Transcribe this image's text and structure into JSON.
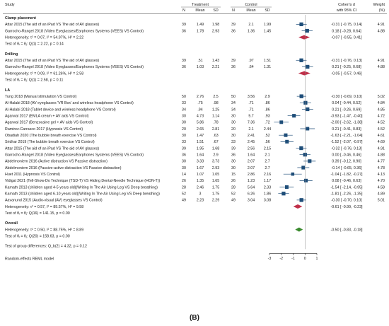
{
  "header": {
    "study": "Study",
    "treatment": "Treatment",
    "control": "Control",
    "n": "N",
    "mean": "Mean",
    "sd": "SD",
    "effect_line1": "Cohen's d",
    "effect_line2": "with 95% CI",
    "weight_line1": "Weight",
    "weight_line2": "(%)"
  },
  "groups": [
    {
      "title": "Clamp placement",
      "studies": [
        {
          "label": "Attar 2015 (The aid of an iPad VS The aid of AV glasses)",
          "tn": "39",
          "tmean": "1.49",
          "tsd": "1.98",
          "cn": "39",
          "cmean": "2.1",
          "csd": "1.99",
          "ci_text": "-0.31 [ -0.75,  0.14]",
          "weight": "4.91",
          "d": -0.31,
          "lo": -0.75,
          "hi": 0.14,
          "w": 4.91
        },
        {
          "label": "Garrocho-Rangel 2018 (Video Eyeglasses/Earphones Systems (VEES) VS Control)",
          "tn": "36",
          "tmean": "1.78",
          "tsd": "2.93",
          "cn": "36",
          "cmean": "1.36",
          "csd": "1.45",
          "ci_text": "0.18 [ -0.28,  0.64]",
          "weight": "4.88",
          "d": 0.18,
          "lo": -0.28,
          "hi": 0.64,
          "w": 4.88
        }
      ],
      "summary": {
        "label": "Heterogeneity: τ² = 0.07, I² = 54.97%, H² = 2.22",
        "ci_text": "-0.07 [ -0.55,  0.41]",
        "d": -0.07,
        "lo": -0.55,
        "hi": 0.41
      },
      "test": "Test of θᵢ = θⱼ: Q(1) = 2.22, p = 0.14"
    },
    {
      "title": "Drilling",
      "studies": [
        {
          "label": "Attar 2015 (The aid of an iPad VS The aid of AV glasses)",
          "tn": "39",
          "tmean": ".51",
          "tsd": "1.43",
          "cn": "39",
          "cmean": ".97",
          "csd": "1.51",
          "ci_text": "-0.31 [ -0.76,  0.13]",
          "weight": "4.91",
          "d": -0.31,
          "lo": -0.76,
          "hi": 0.13,
          "w": 4.91
        },
        {
          "label": "Garrocho-Rangel 2018 (Video Eyeglasses/Earphones Systems (VEES) VS Control)",
          "tn": "36",
          "tmean": "1.03",
          "tsd": "2.21",
          "cn": "36",
          "cmean": ".64",
          "csd": "1.31",
          "ci_text": "0.21 [ -0.25,  0.68]",
          "weight": "4.88",
          "d": 0.21,
          "lo": -0.25,
          "hi": 0.68,
          "w": 4.88
        }
      ],
      "summary": {
        "label": "Heterogeneity: τ² = 0.09, I² = 61.26%, H² = 2.58",
        "ci_text": "-0.05 [ -0.57,  0.46]",
        "d": -0.05,
        "lo": -0.57,
        "hi": 0.46
      },
      "test": "Test of θᵢ = θⱼ: Q(1) = 2.58, p = 0.11"
    },
    {
      "title": "LA",
      "studies": [
        {
          "label": "Tung 2018 (Manual stimulation VS Control)",
          "tn": "50",
          "tmean": "2.76",
          "tsd": "2.5",
          "cn": "50",
          "cmean": "3.56",
          "csd": "2.9",
          "ci_text": "-0.30 [ -0.69,  0.10]",
          "weight": "5.02",
          "d": -0.3,
          "lo": -0.69,
          "hi": 0.1,
          "w": 5.02
        },
        {
          "label": "Al-Halabi 2018 (AV eyeglasses 'VR Box' and wireless headphone VS Control)",
          "tn": "33",
          "tmean": ".75",
          "tsd": ".98",
          "cn": "34",
          "cmean": ".71",
          "csd": ".86",
          "ci_text": "0.04 [ -0.44,  0.52]",
          "weight": "4.84",
          "d": 0.04,
          "lo": -0.44,
          "hi": 0.52,
          "w": 4.84
        },
        {
          "label": "Al-Halabi 2018 (Tablet device and wireless headphone VS Control)",
          "tn": "34",
          "tmean": ".94",
          "tsd": "1.25",
          "cn": "34",
          "cmean": ".71",
          "csd": ".86",
          "ci_text": "0.21 [ -0.26,  0.69]",
          "weight": "4.85",
          "d": 0.21,
          "lo": -0.26,
          "hi": 0.69,
          "w": 4.85
        },
        {
          "label": "Agarwal 2017 (EMLA cream + AV aids VS Control)",
          "tn": "30",
          "tmean": "4.73",
          "tsd": "1.14",
          "cn": "30",
          "cmean": "5.7",
          "csd": ".93",
          "ci_text": "-0.93 [ -1.47, -0.40]",
          "weight": "4.72",
          "d": -0.93,
          "lo": -1.47,
          "hi": -0.4,
          "w": 4.72
        },
        {
          "label": "Agarwal 2017 (Benzocaine gel + AV aids VS Control)",
          "tn": "30",
          "tmean": "5.86",
          "tsd": ".78",
          "cn": "30",
          "cmean": "7.36",
          "csd": ".72",
          "ci_text": "-2.00 [ -2.62, -1.38]",
          "weight": "4.52",
          "d": -2.0,
          "lo": -2.62,
          "hi": -1.38,
          "w": 4.52
        },
        {
          "label": "Ramirez-Carrasco 2017 (Hypnosis VS Control)",
          "tn": "20",
          "tmean": "2.65",
          "tsd": "2.81",
          "cn": "20",
          "cmean": "2.1",
          "csd": "2.44",
          "ci_text": "0.21 [ -0.41,  0.83]",
          "weight": "4.52",
          "d": 0.21,
          "lo": -0.41,
          "hi": 0.83,
          "w": 4.52
        },
        {
          "label": "Obadiah 2020 (The bubble breath exercise VS Control)",
          "tn": "30",
          "tmean": "1.47",
          "tsd": ".63",
          "cn": "30",
          "cmean": "2.41",
          "csd": ".52",
          "ci_text": "-1.63 [ -2.21, -1.04]",
          "weight": "4.61",
          "d": -1.63,
          "lo": -2.21,
          "hi": -1.04,
          "w": 4.61
        },
        {
          "label": "Sridhar 2019 (The bubble breath exercise VS Control)",
          "tn": "33",
          "tmean": "1.51",
          "tsd": ".67",
          "cn": "33",
          "cmean": "2.45",
          "csd": ".56",
          "ci_text": "-1.52 [ -2.07, -0.97]",
          "weight": "4.69",
          "d": -1.52,
          "lo": -2.07,
          "hi": -0.97,
          "w": 4.69
        },
        {
          "label": "Attar 2015 (The aid of an iPad VS The aid of AV glasses)",
          "tn": "39",
          "tmean": "1.95",
          "tsd": "1.68",
          "cn": "39",
          "cmean": "2.56",
          "csd": "2.15",
          "ci_text": "-0.32 [ -0.76,  0.13]",
          "weight": "4.91",
          "d": -0.32,
          "lo": -0.76,
          "hi": 0.13,
          "w": 4.91
        },
        {
          "label": "Garrocho-Rangel 2018 (Video Eyeglasses/Earphones Systems (VEES) VS Control)",
          "tn": "36",
          "tmean": "1.64",
          "tsd": "2.9",
          "cn": "36",
          "cmean": "1.64",
          "csd": "2.1",
          "ci_text": "0.00 [ -0.46,  0.46]",
          "weight": "4.88",
          "d": 0.0,
          "lo": -0.46,
          "hi": 0.46,
          "w": 4.88
        },
        {
          "label": "Abdelmoniem 2016 (Active distraction VS Passive distraction)",
          "tn": "30",
          "tmean": "3.33",
          "tsd": "3.73",
          "cn": "30",
          "cmean": "2.07",
          "csd": "2.7",
          "ci_text": "0.39 [ -0.12,  0.90]",
          "weight": "4.77",
          "d": 0.39,
          "lo": -0.12,
          "hi": 0.9,
          "w": 4.77
        },
        {
          "label": "Abdelmoniem 2016 (Passive-active distraction VS Passive distraction)",
          "tn": "30",
          "tmean": "1.67",
          "tsd": "2.93",
          "cn": "30",
          "cmean": "2.07",
          "csd": "2.7",
          "ci_text": "-0.14 [ -0.65,  0.36]",
          "weight": "4.78",
          "d": -0.14,
          "lo": -0.65,
          "hi": 0.36,
          "w": 4.78
        },
        {
          "label": "Huet 2011 (Hypnosis VS Control)",
          "tn": "14",
          "tmean": "1.07",
          "tsd": "1.05",
          "cn": "15",
          "cmean": "2.86",
          "csd": "2.16",
          "ci_text": "-1.04 [ -1.82, -0.27]",
          "weight": "4.13",
          "d": -1.04,
          "lo": -1.82,
          "hi": -0.27,
          "w": 4.13
        },
        {
          "label": "Vidigal 2021 (Tell-Show-Do Technique (TSD-T) VS Hiding Dental-Needle Technique (HON-T))",
          "tn": "26",
          "tmean": "1.35",
          "tsd": "1.65",
          "cn": "26",
          "cmean": "1.23",
          "csd": "1.17",
          "ci_text": "0.08 [ -0.46,  0.63]",
          "weight": "4.70",
          "d": 0.08,
          "lo": -0.46,
          "hi": 0.63,
          "w": 4.7
        },
        {
          "label": "Kamath 2013 (children aged 4-5 years old)(Writing In The Air Using Leg VS Deep breathing)",
          "tn": "28",
          "tmean": "2.46",
          "tsd": "1.75",
          "cn": "28",
          "cmean": "5.64",
          "csd": "2.33",
          "ci_text": "-1.54 [ -2.14, -0.95]",
          "weight": "4.58",
          "d": -1.54,
          "lo": -2.14,
          "hi": -0.95,
          "w": 4.58
        },
        {
          "label": "Kamath 2013 (children aged 6-10 years old)(Writing In The Air Using Leg VS Deep breathing)",
          "tn": "52",
          "tmean": "3",
          "tsd": "1.75",
          "cn": "52",
          "cmean": "6.26",
          "csd": "1.86",
          "ci_text": "-1.81 [ -2.26, -1.35]",
          "weight": "4.89",
          "d": -1.81,
          "lo": -2.26,
          "hi": -1.35,
          "w": 4.89
        },
        {
          "label": "Aavanund 2015 (Audio-visual (AV) eyeglasses VS Control)",
          "tn": "49",
          "tmean": "2.23",
          "tsd": "2.29",
          "cn": "49",
          "cmean": "3.04",
          "csd": "3.08",
          "ci_text": "-0.30 [ -0.70,  0.10]",
          "weight": "5.01",
          "d": -0.3,
          "lo": -0.7,
          "hi": 0.1,
          "w": 5.01
        }
      ],
      "summary": {
        "label": "Heterogeneity: τ² = 0.57, I² = 89.57%, H² = 9.58",
        "ci_text": "-0.61 [ -0.99, -0.23]",
        "d": -0.61,
        "lo": -0.99,
        "hi": -0.23
      },
      "test": "Test of θᵢ = θⱼ: Q(16) = 141.15, p = 0.00"
    }
  ],
  "overall": {
    "title": "Overall",
    "summary": {
      "label": "Heterogeneity: τ² = 0.50, I² = 88.75%, H² = 8.89",
      "ci_text": "-0.50 [ -0.83, -0.18]",
      "d": -0.5,
      "lo": -0.83,
      "hi": -0.18
    },
    "test": "Test of θᵢ = θⱼ: Q(20) = 158.63, p = 0.00",
    "group_test": "Test of group differences: Q_b(2) = 4.32, p = 0.12"
  },
  "footnote": "Random-effects REML model",
  "panel_label": "(B)",
  "axis": {
    "ticks": [
      "-3",
      "-2",
      "-1",
      "0",
      "1"
    ],
    "tick_values": [
      -3,
      -2,
      -1,
      0,
      1
    ]
  },
  "colors": {
    "box": "#1f4e79",
    "summary_clamp": "#c0304a",
    "summary_drill": "#c0304a",
    "summary_la": "#c0304a",
    "summary_overall": "#3a8a2e"
  },
  "chart_data": {
    "type": "forest",
    "x_label": "Cohen's d with 95% CI",
    "xlim": [
      -3,
      1
    ],
    "reference_line": 0,
    "subgroups": [
      {
        "name": "Clamp placement",
        "d": [
          -0.31,
          0.18
        ],
        "ci_low": [
          -0.75,
          -0.28
        ],
        "ci_high": [
          0.14,
          0.64
        ],
        "weight": [
          4.91,
          4.88
        ],
        "pooled": {
          "d": -0.07,
          "ci": [
            -0.55,
            0.41
          ]
        }
      },
      {
        "name": "Drilling",
        "d": [
          -0.31,
          0.21
        ],
        "ci_low": [
          -0.76,
          -0.25
        ],
        "ci_high": [
          0.13,
          0.68
        ],
        "weight": [
          4.91,
          4.88
        ],
        "pooled": {
          "d": -0.05,
          "ci": [
            -0.57,
            0.46
          ]
        }
      },
      {
        "name": "LA",
        "d": [
          -0.3,
          0.04,
          0.21,
          -0.93,
          -2.0,
          0.21,
          -1.63,
          -1.52,
          -0.32,
          0.0,
          0.39,
          -0.14,
          -1.04,
          0.08,
          -1.54,
          -1.81,
          -0.3
        ],
        "ci_low": [
          -0.69,
          -0.44,
          -0.26,
          -1.47,
          -2.62,
          -0.41,
          -2.21,
          -2.07,
          -0.76,
          -0.46,
          -0.12,
          -0.65,
          -1.82,
          -0.46,
          -2.14,
          -2.26,
          -0.7
        ],
        "ci_high": [
          0.1,
          0.52,
          0.69,
          -0.4,
          -1.38,
          0.83,
          -1.04,
          -0.97,
          0.13,
          0.46,
          0.9,
          0.36,
          -0.27,
          0.63,
          -0.95,
          -1.35,
          0.1
        ],
        "weight": [
          5.02,
          4.84,
          4.85,
          4.72,
          4.52,
          4.52,
          4.61,
          4.69,
          4.91,
          4.88,
          4.77,
          4.78,
          4.13,
          4.7,
          4.58,
          4.89,
          5.01
        ],
        "pooled": {
          "d": -0.61,
          "ci": [
            -0.99,
            -0.23
          ]
        }
      }
    ],
    "overall": {
      "d": -0.5,
      "ci": [
        -0.83,
        -0.18
      ]
    }
  }
}
